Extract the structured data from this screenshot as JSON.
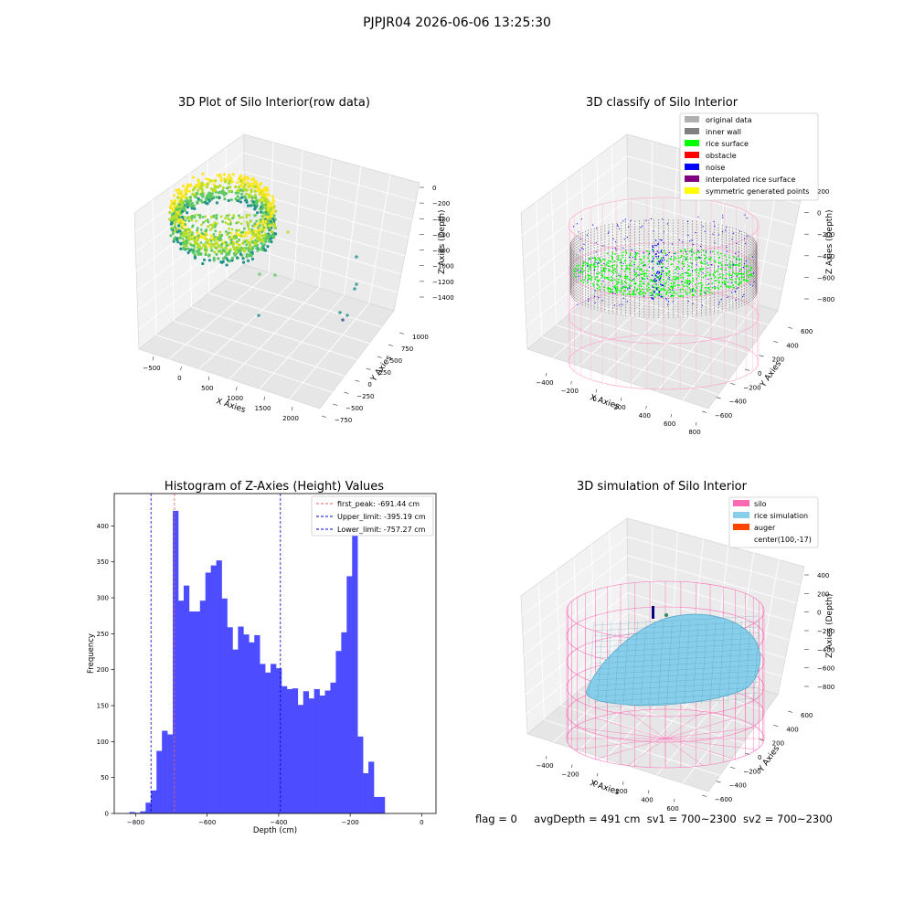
{
  "figure": {
    "suptitle": "PJPJR04 2026-06-06 13:25:30",
    "status": {
      "flag": "flag = 0",
      "avg_depth": "avgDepth = 491 cm",
      "sv1": "sv1 = 700~2300",
      "sv2": "sv2 = 700~2300"
    }
  },
  "chart_data": [
    {
      "type": "scatter",
      "title": "3D Plot of Silo Interior(row data)",
      "xlabel": "X Axies",
      "ylabel": "Y Axies",
      "zlabel": "Z Axies (Depth)",
      "xticks": [
        "−500",
        "0",
        "500",
        "1000",
        "1500",
        "2000"
      ],
      "yticks": [
        "−750",
        "−500",
        "−250",
        "0",
        "250",
        "500",
        "750",
        "1000"
      ],
      "zticks": [
        "0",
        "−200",
        "−400",
        "−600",
        "−800",
        "−1000",
        "−1200",
        "−1400"
      ],
      "colormap": "viridis"
    },
    {
      "type": "scatter",
      "title": "3D classify of Silo Interior",
      "xlabel": "X Axies",
      "ylabel": "Y Axies",
      "zlabel": "Z Axies (Depth)",
      "xticks": [
        "−400",
        "−200",
        "0",
        "200",
        "400",
        "600",
        "800"
      ],
      "yticks": [
        "−600",
        "−400",
        "−200",
        "0",
        "200",
        "400",
        "600"
      ],
      "zticks": [
        "200",
        "0",
        "−200",
        "−400",
        "−600",
        "−800"
      ],
      "legend_position": "top-right",
      "legend": [
        {
          "label": "original data",
          "color": "#b0b0b0"
        },
        {
          "label": "inner wall",
          "color": "#808080"
        },
        {
          "label": "rice surface",
          "color": "#00ff00"
        },
        {
          "label": "obstacle",
          "color": "#ff0000"
        },
        {
          "label": "noise",
          "color": "#0000ff"
        },
        {
          "label": "interpolated rice surface",
          "color": "#800080"
        },
        {
          "label": "symmetric generated points",
          "color": "#ffff00"
        }
      ]
    },
    {
      "type": "bar",
      "title": "Histogram of Z-Axies (Height) Values",
      "xlabel": "Depth (cm)",
      "ylabel": "Frequency",
      "xlim": [
        -860,
        40
      ],
      "ylim": [
        0,
        445
      ],
      "xticks": [
        -800,
        -600,
        -400,
        -200,
        0
      ],
      "xtick_labels": [
        "−800",
        "−600",
        "−400",
        "−200",
        "0"
      ],
      "yticks": [
        0,
        50,
        100,
        150,
        200,
        250,
        300,
        350,
        400
      ],
      "bar_color": "#4d4dff",
      "bin_width": 15.2,
      "bins_start": -817.8,
      "values": [
        2,
        1,
        3,
        15,
        32,
        87,
        115,
        110,
        421,
        296,
        317,
        281,
        281,
        296,
        335,
        345,
        352,
        299,
        259,
        228,
        260,
        249,
        238,
        248,
        208,
        196,
        208,
        202,
        177,
        173,
        174,
        151,
        170,
        160,
        173,
        164,
        171,
        182,
        226,
        252,
        330,
        420,
        107,
        56,
        72,
        23,
        23
      ],
      "vlines": [
        {
          "label": "first_peak: -691.44 cm",
          "x": -691.44,
          "color": "#e06060"
        },
        {
          "label": "Upper_limit: -395.19 cm",
          "x": -395.19,
          "color": "#0000cc"
        },
        {
          "label": "Lower_limit: -757.27 cm",
          "x": -757.27,
          "color": "#0000cc"
        }
      ],
      "legend_position": "top-right"
    },
    {
      "type": "area",
      "title": "3D simulation of Silo Interior",
      "xlabel": "X Axies",
      "ylabel": "Y Axies",
      "zlabel": "Z Axies (Depth)",
      "xticks": [
        "−400",
        "−200",
        "0",
        "200",
        "400",
        "600"
      ],
      "yticks": [
        "−600",
        "−400",
        "−200",
        "0",
        "200",
        "400",
        "600"
      ],
      "zticks": [
        "400",
        "200",
        "0",
        "−200",
        "−400",
        "−600",
        "−800"
      ],
      "legend_position": "top-right",
      "legend": [
        {
          "label": "silo",
          "color": "#ff69b4"
        },
        {
          "label": "rice simulation",
          "color": "#87ceeb"
        },
        {
          "label": "auger",
          "color": "#ff4500"
        },
        {
          "label": "center(100,-17)",
          "color": ""
        }
      ]
    }
  ]
}
